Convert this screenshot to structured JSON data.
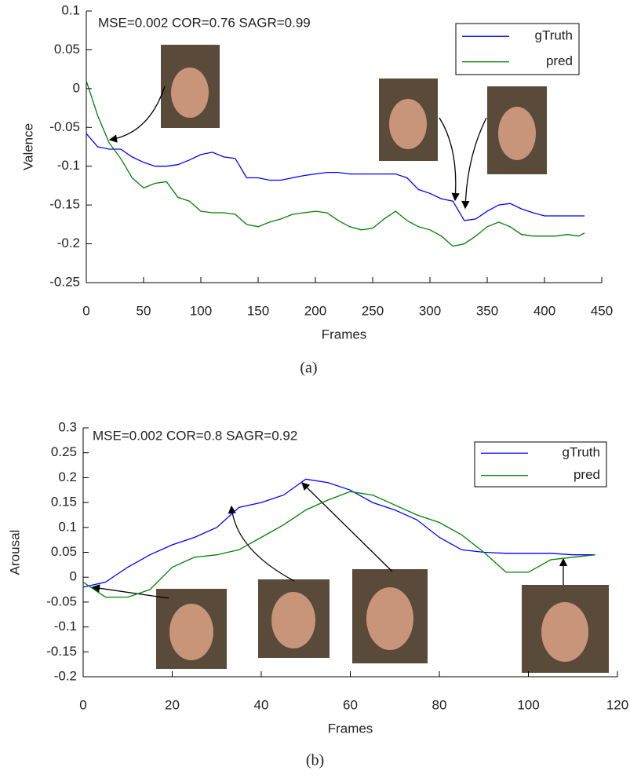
{
  "chart_data": [
    {
      "type": "line",
      "annotation": "MSE=0.002 COR=0.76 SAGR=0.99",
      "caption": "(a)",
      "x_label": "Frames",
      "y_label": "Valence",
      "x": [
        0,
        10,
        20,
        30,
        40,
        50,
        60,
        70,
        80,
        90,
        100,
        110,
        120,
        130,
        140,
        150,
        160,
        170,
        180,
        190,
        200,
        210,
        220,
        230,
        240,
        250,
        260,
        270,
        280,
        290,
        300,
        310,
        320,
        330,
        340,
        350,
        360,
        370,
        380,
        390,
        400,
        410,
        420,
        430,
        435
      ],
      "series": [
        {
          "name": "gTruth",
          "color": "#0000ff",
          "values": [
            -0.058,
            -0.075,
            -0.078,
            -0.078,
            -0.088,
            -0.095,
            -0.1,
            -0.1,
            -0.098,
            -0.092,
            -0.085,
            -0.082,
            -0.088,
            -0.09,
            -0.115,
            -0.115,
            -0.118,
            -0.118,
            -0.115,
            -0.112,
            -0.11,
            -0.108,
            -0.108,
            -0.11,
            -0.11,
            -0.11,
            -0.11,
            -0.11,
            -0.115,
            -0.13,
            -0.135,
            -0.142,
            -0.145,
            -0.17,
            -0.168,
            -0.158,
            -0.15,
            -0.148,
            -0.155,
            -0.16,
            -0.164,
            -0.164,
            -0.164,
            -0.164,
            -0.164
          ]
        },
        {
          "name": "pred",
          "color": "#008000",
          "values": [
            0.01,
            -0.035,
            -0.07,
            -0.09,
            -0.115,
            -0.128,
            -0.122,
            -0.12,
            -0.14,
            -0.145,
            -0.158,
            -0.16,
            -0.16,
            -0.162,
            -0.175,
            -0.178,
            -0.172,
            -0.168,
            -0.162,
            -0.16,
            -0.158,
            -0.16,
            -0.17,
            -0.178,
            -0.182,
            -0.18,
            -0.168,
            -0.158,
            -0.17,
            -0.178,
            -0.182,
            -0.19,
            -0.203,
            -0.2,
            -0.19,
            -0.178,
            -0.172,
            -0.178,
            -0.188,
            -0.19,
            -0.19,
            -0.19,
            -0.188,
            -0.19,
            -0.186
          ]
        }
      ],
      "xlim": [
        0,
        450
      ],
      "xticks": [
        0,
        50,
        100,
        150,
        200,
        250,
        300,
        350,
        400,
        450
      ],
      "ylim": [
        -0.25,
        0.1
      ],
      "yticks": [
        0.1,
        0.05,
        0,
        -0.05,
        -0.1,
        -0.15,
        -0.2,
        -0.25
      ],
      "legend": "upper right"
    },
    {
      "type": "line",
      "annotation": "MSE=0.002 COR=0.8 SAGR=0.92",
      "caption": "(b)",
      "x_label": "Frames",
      "y_label": "Arousal",
      "x": [
        0,
        5,
        10,
        15,
        20,
        25,
        30,
        35,
        40,
        45,
        50,
        55,
        60,
        65,
        70,
        75,
        80,
        85,
        90,
        95,
        100,
        105,
        110,
        115
      ],
      "series": [
        {
          "name": "gTruth",
          "color": "#0000ff",
          "values": [
            -0.02,
            -0.01,
            0.02,
            0.045,
            0.065,
            0.08,
            0.1,
            0.14,
            0.15,
            0.165,
            0.197,
            0.19,
            0.175,
            0.15,
            0.135,
            0.115,
            0.08,
            0.055,
            0.05,
            0.048,
            0.048,
            0.048,
            0.045,
            0.045
          ]
        },
        {
          "name": "pred",
          "color": "#008000",
          "values": [
            -0.01,
            -0.04,
            -0.04,
            -0.025,
            0.02,
            0.04,
            0.045,
            0.055,
            0.08,
            0.105,
            0.135,
            0.155,
            0.172,
            0.165,
            0.145,
            0.125,
            0.11,
            0.085,
            0.05,
            0.01,
            0.01,
            0.035,
            0.04,
            0.045
          ]
        }
      ],
      "xlim": [
        0,
        120
      ],
      "xticks": [
        0,
        20,
        40,
        60,
        80,
        100,
        120
      ],
      "ylim": [
        -0.2,
        0.3
      ],
      "yticks": [
        0.3,
        0.25,
        0.2,
        0.15,
        0.1,
        0.05,
        0,
        -0.05,
        -0.1,
        -0.15,
        -0.2
      ],
      "legend": "upper right"
    }
  ]
}
